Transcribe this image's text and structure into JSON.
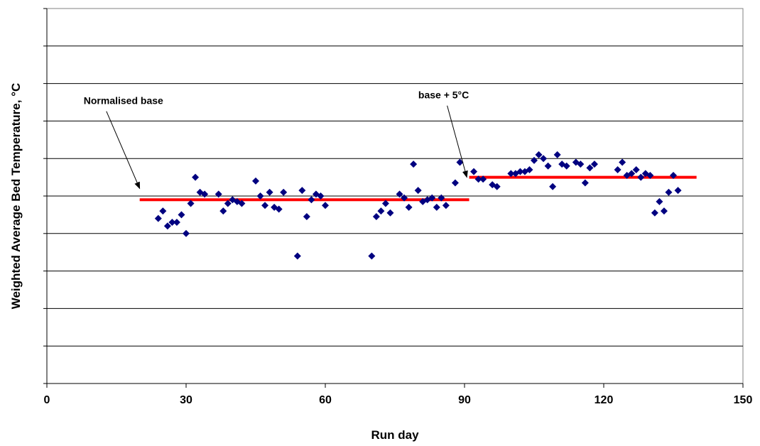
{
  "chart_data": {
    "type": "scatter",
    "title": "",
    "xlabel": "Run day",
    "ylabel": "Weighted Average Bed Temperature, °C",
    "xlim": [
      0,
      150
    ],
    "xticks": [
      0,
      30,
      60,
      90,
      120,
      150
    ],
    "y_gridline_count": 10,
    "y_tick_labels_shown": false,
    "grid": true,
    "legend": "none",
    "marker_color": "#000080",
    "line_color": "#ff0000",
    "note": "Y axis has no printed tick labels; y values below are in gridline units from the bottom of the plot (0 to 10).",
    "series": [
      {
        "name": "",
        "marker": "diamond",
        "x": [
          24,
          25,
          26,
          27,
          28,
          29,
          30,
          31,
          32,
          33,
          34,
          37,
          38,
          39,
          40,
          41,
          42,
          45,
          46,
          47,
          48,
          49,
          50,
          51,
          54,
          55,
          56,
          57,
          58,
          59,
          60,
          70,
          71,
          72,
          73,
          74,
          76,
          77,
          78,
          79,
          80,
          81,
          82,
          83,
          84,
          85,
          86,
          88,
          89,
          92,
          93,
          94,
          96,
          97,
          100,
          101,
          102,
          103,
          104,
          105,
          106,
          107,
          108,
          109,
          110,
          111,
          112,
          114,
          115,
          116,
          117,
          118,
          123,
          124,
          125,
          126,
          127,
          128,
          129,
          130,
          131,
          132,
          133,
          134,
          135,
          136
        ],
        "y": [
          4.4,
          4.6,
          4.2,
          4.3,
          4.3,
          4.5,
          4.0,
          4.8,
          5.5,
          5.1,
          5.05,
          5.05,
          4.6,
          4.8,
          4.9,
          4.85,
          4.8,
          5.4,
          5.0,
          4.75,
          5.1,
          4.7,
          4.65,
          5.1,
          3.4,
          5.15,
          4.45,
          4.9,
          5.05,
          5.0,
          4.75,
          3.4,
          4.45,
          4.6,
          4.8,
          4.55,
          5.05,
          4.95,
          4.7,
          5.85,
          5.15,
          4.85,
          4.9,
          4.95,
          4.7,
          4.95,
          4.75,
          5.35,
          5.9,
          5.65,
          5.45,
          5.45,
          5.3,
          5.25,
          5.6,
          5.6,
          5.65,
          5.65,
          5.7,
          5.95,
          6.1,
          6.0,
          5.8,
          5.25,
          6.1,
          5.85,
          5.8,
          5.9,
          5.85,
          5.35,
          5.75,
          5.85,
          5.7,
          5.9,
          5.55,
          5.6,
          5.7,
          5.5,
          5.6,
          5.55,
          4.55,
          4.85,
          4.6,
          5.1,
          5.55,
          5.15
        ]
      }
    ],
    "reference_lines": [
      {
        "x": [
          20,
          91
        ],
        "y": 4.9
      },
      {
        "x": [
          91,
          140
        ],
        "y": 5.5
      }
    ],
    "annotations": [
      {
        "text": "Normalised base",
        "x": 16.5,
        "y": 7.45,
        "arrow_to": [
          20,
          5.2
        ]
      },
      {
        "text": "base + 5°C",
        "x": 85.5,
        "y": 7.6,
        "arrow_to": [
          90.5,
          5.5
        ]
      }
    ]
  }
}
